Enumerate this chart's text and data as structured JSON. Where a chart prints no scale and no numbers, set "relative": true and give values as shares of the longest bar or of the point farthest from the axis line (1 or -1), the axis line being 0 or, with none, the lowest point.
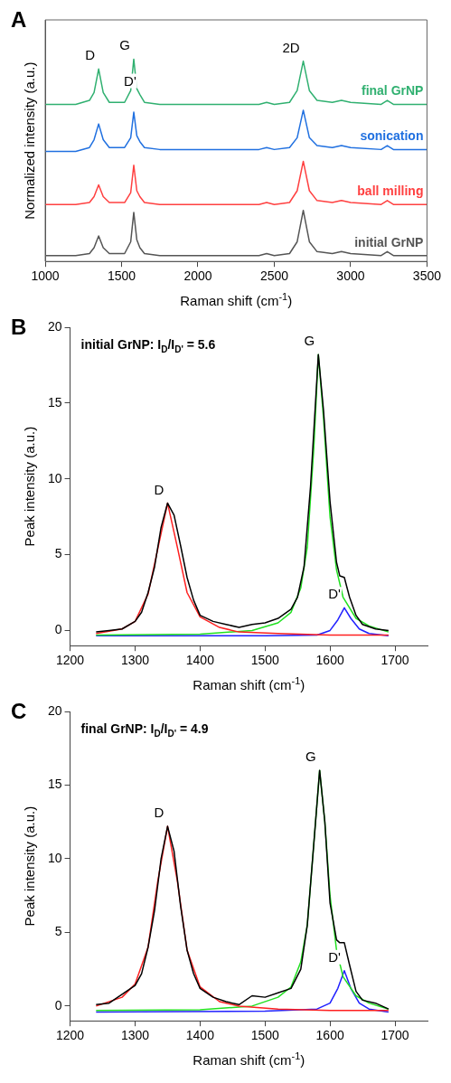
{
  "chart_data": [
    {
      "type": "line",
      "title": "A",
      "xlabel": "Raman shift (cm$^{-1}$)",
      "ylabel": "Normalized intensity (a.u.)",
      "relative": true,
      "grid": false,
      "xlim": [
        1000,
        3500
      ],
      "xticks": [
        1000,
        1500,
        2000,
        2500,
        3000,
        3500
      ],
      "x": [
        1000,
        1200,
        1290,
        1320,
        1350,
        1380,
        1420,
        1520,
        1560,
        1580,
        1600,
        1620,
        1650,
        1750,
        2000,
        2400,
        2450,
        2500,
        2600,
        2650,
        2690,
        2730,
        2780,
        2880,
        2940,
        3000,
        3200,
        3240,
        3280,
        3500
      ],
      "series": [
        {
          "name": "initial GrNP",
          "color": "#555555",
          "values": [
            0,
            0,
            0.01,
            0.04,
            0.1,
            0.04,
            0.01,
            0.01,
            0.07,
            0.22,
            0.08,
            0.04,
            0.01,
            0,
            0,
            0,
            0.01,
            0,
            0.01,
            0.07,
            0.23,
            0.07,
            0.02,
            0.01,
            0.02,
            0.01,
            0,
            0.02,
            0,
            0
          ]
        },
        {
          "name": "ball milling",
          "color": "#ff4040",
          "values": [
            0.26,
            0.26,
            0.27,
            0.3,
            0.36,
            0.3,
            0.27,
            0.27,
            0.32,
            0.46,
            0.33,
            0.3,
            0.27,
            0.26,
            0.26,
            0.26,
            0.27,
            0.26,
            0.27,
            0.33,
            0.48,
            0.33,
            0.28,
            0.27,
            0.28,
            0.27,
            0.26,
            0.28,
            0.26,
            0.26
          ]
        },
        {
          "name": "sonication",
          "color": "#2070e0",
          "values": [
            0.53,
            0.53,
            0.55,
            0.59,
            0.67,
            0.59,
            0.55,
            0.55,
            0.6,
            0.73,
            0.61,
            0.58,
            0.55,
            0.54,
            0.54,
            0.54,
            0.55,
            0.54,
            0.55,
            0.6,
            0.74,
            0.6,
            0.56,
            0.55,
            0.56,
            0.55,
            0.54,
            0.56,
            0.54,
            0.54
          ]
        },
        {
          "name": "final GrNP",
          "color": "#30b070",
          "values": [
            0.77,
            0.77,
            0.79,
            0.83,
            0.95,
            0.83,
            0.78,
            0.78,
            0.84,
            1.0,
            0.85,
            0.82,
            0.78,
            0.77,
            0.77,
            0.77,
            0.78,
            0.77,
            0.78,
            0.84,
            0.99,
            0.84,
            0.79,
            0.78,
            0.79,
            0.78,
            0.77,
            0.79,
            0.77,
            0.77
          ]
        }
      ],
      "annotations": [
        {
          "text": "D",
          "x": 1350,
          "y": 0.95
        },
        {
          "text": "G",
          "x": 1580,
          "y": 1.0
        },
        {
          "text": "D'",
          "x": 1620,
          "y": 0.82
        },
        {
          "text": "2D",
          "x": 2690,
          "y": 0.99
        }
      ]
    },
    {
      "type": "line",
      "title": "B",
      "xlabel": "Raman shift (cm$^{-1}$)",
      "ylabel": "Peak intensity (a.u.)",
      "grid": false,
      "xlim": [
        1200,
        1750
      ],
      "xticks": [
        1200,
        1300,
        1400,
        1500,
        1600,
        1700
      ],
      "ylim": [
        -1,
        20
      ],
      "yticks": [
        0,
        5,
        10,
        15,
        20
      ],
      "series": [
        {
          "color": "#000000",
          "x": [
            1240,
            1260,
            1280,
            1300,
            1310,
            1320,
            1330,
            1340,
            1350,
            1360,
            1370,
            1380,
            1390,
            1400,
            1420,
            1440,
            1460,
            1480,
            1500,
            1520,
            1540,
            1550,
            1560,
            1570,
            1582,
            1590,
            1600,
            1610,
            1615,
            1622,
            1630,
            1640,
            1650,
            1670,
            1690
          ],
          "values": [
            -0.1,
            0,
            0.1,
            0.6,
            1.2,
            2.5,
            4.2,
            6.8,
            8.4,
            7.6,
            5.6,
            3.5,
            2.0,
            1.0,
            0.6,
            0.4,
            0.2,
            0.4,
            0.5,
            0.8,
            1.4,
            2.2,
            4.2,
            9.5,
            18.2,
            14.5,
            8.5,
            4.5,
            3.6,
            3.5,
            2.2,
            1.0,
            0.4,
            0.1,
            0
          ]
        },
        {
          "color": "#ff2020",
          "x": [
            1240,
            1280,
            1300,
            1320,
            1335,
            1350,
            1365,
            1380,
            1400,
            1430,
            1460,
            1520,
            1600,
            1690
          ],
          "values": [
            -0.2,
            0.1,
            0.6,
            2.4,
            5.4,
            8.4,
            5.5,
            2.5,
            0.9,
            0.2,
            -0.1,
            -0.2,
            -0.3,
            -0.3
          ]
        },
        {
          "color": "#20e020",
          "x": [
            1240,
            1400,
            1480,
            1520,
            1540,
            1555,
            1565,
            1575,
            1582,
            1590,
            1600,
            1610,
            1620,
            1640,
            1660,
            1690
          ],
          "values": [
            -0.3,
            -0.25,
            0,
            0.5,
            1.2,
            2.8,
            5.5,
            12,
            18.2,
            14,
            7.5,
            4.0,
            2.2,
            0.8,
            0.3,
            -0.1
          ]
        },
        {
          "color": "#2020ff",
          "x": [
            1240,
            1500,
            1580,
            1600,
            1612,
            1622,
            1632,
            1645,
            1660,
            1690
          ],
          "values": [
            -0.35,
            -0.35,
            -0.3,
            0,
            0.7,
            1.5,
            0.8,
            0.1,
            -0.2,
            -0.35
          ]
        }
      ],
      "annotations": [
        "initial GrNP: I$_{D}$/I$_{D'}$ = 5.6",
        {
          "text": "D",
          "x": 1350,
          "y": 8.4
        },
        {
          "text": "G",
          "x": 1582,
          "y": 18.2
        },
        {
          "text": "D'",
          "x": 1622,
          "y": 1.5
        }
      ]
    },
    {
      "type": "line",
      "title": "C",
      "xlabel": "Raman shift (cm$^{-1}$)",
      "ylabel": "Peak intensity (a.u.)",
      "grid": false,
      "xlim": [
        1200,
        1750
      ],
      "xticks": [
        1200,
        1300,
        1400,
        1500,
        1600,
        1700
      ],
      "ylim": [
        -1,
        20
      ],
      "yticks": [
        0,
        5,
        10,
        15,
        20
      ],
      "series": [
        {
          "color": "#000000",
          "x": [
            1240,
            1260,
            1280,
            1300,
            1310,
            1320,
            1330,
            1340,
            1350,
            1360,
            1370,
            1380,
            1390,
            1400,
            1420,
            1440,
            1460,
            1480,
            1500,
            1520,
            1540,
            1555,
            1565,
            1575,
            1584,
            1592,
            1600,
            1610,
            1615,
            1622,
            1630,
            1640,
            1650,
            1670,
            1690
          ],
          "values": [
            0.1,
            0.2,
            0.8,
            1.4,
            2.2,
            4.0,
            6.5,
            10,
            12.2,
            10.5,
            6.8,
            3.8,
            2.2,
            1.2,
            0.6,
            0.3,
            0.1,
            0.7,
            0.6,
            0.9,
            1.2,
            2.5,
            5.5,
            11,
            16,
            12.5,
            7,
            4.5,
            4.3,
            4.3,
            2.8,
            1.0,
            0.4,
            0.2,
            -0.2
          ]
        },
        {
          "color": "#ff2020",
          "x": [
            1240,
            1280,
            1300,
            1320,
            1335,
            1350,
            1365,
            1380,
            1400,
            1430,
            1460,
            1520,
            1600,
            1690
          ],
          "values": [
            0,
            0.6,
            1.5,
            4.0,
            8.5,
            12.2,
            8.5,
            3.8,
            1.3,
            0.3,
            0,
            -0.2,
            -0.3,
            -0.3
          ]
        },
        {
          "color": "#20e020",
          "x": [
            1240,
            1400,
            1480,
            1520,
            1540,
            1555,
            1565,
            1575,
            1584,
            1592,
            1600,
            1610,
            1620,
            1640,
            1660,
            1690
          ],
          "values": [
            -0.3,
            -0.25,
            0,
            0.6,
            1.3,
            3.0,
            5.5,
            11,
            16,
            12.5,
            7.5,
            3.8,
            2.0,
            0.7,
            0.2,
            -0.2
          ]
        },
        {
          "color": "#2020ff",
          "x": [
            1240,
            1500,
            1580,
            1600,
            1612,
            1622,
            1632,
            1645,
            1660,
            1690
          ],
          "values": [
            -0.4,
            -0.35,
            -0.2,
            0.2,
            1.2,
            2.4,
            1.2,
            0.2,
            -0.2,
            -0.4
          ]
        }
      ],
      "annotations": [
        "final GrNP: I$_{D}$/I$_{D'}$ = 4.9",
        {
          "text": "D",
          "x": 1350,
          "y": 12.2
        },
        {
          "text": "G",
          "x": 1584,
          "y": 16
        },
        {
          "text": "D'",
          "x": 1622,
          "y": 2.4
        }
      ]
    }
  ]
}
